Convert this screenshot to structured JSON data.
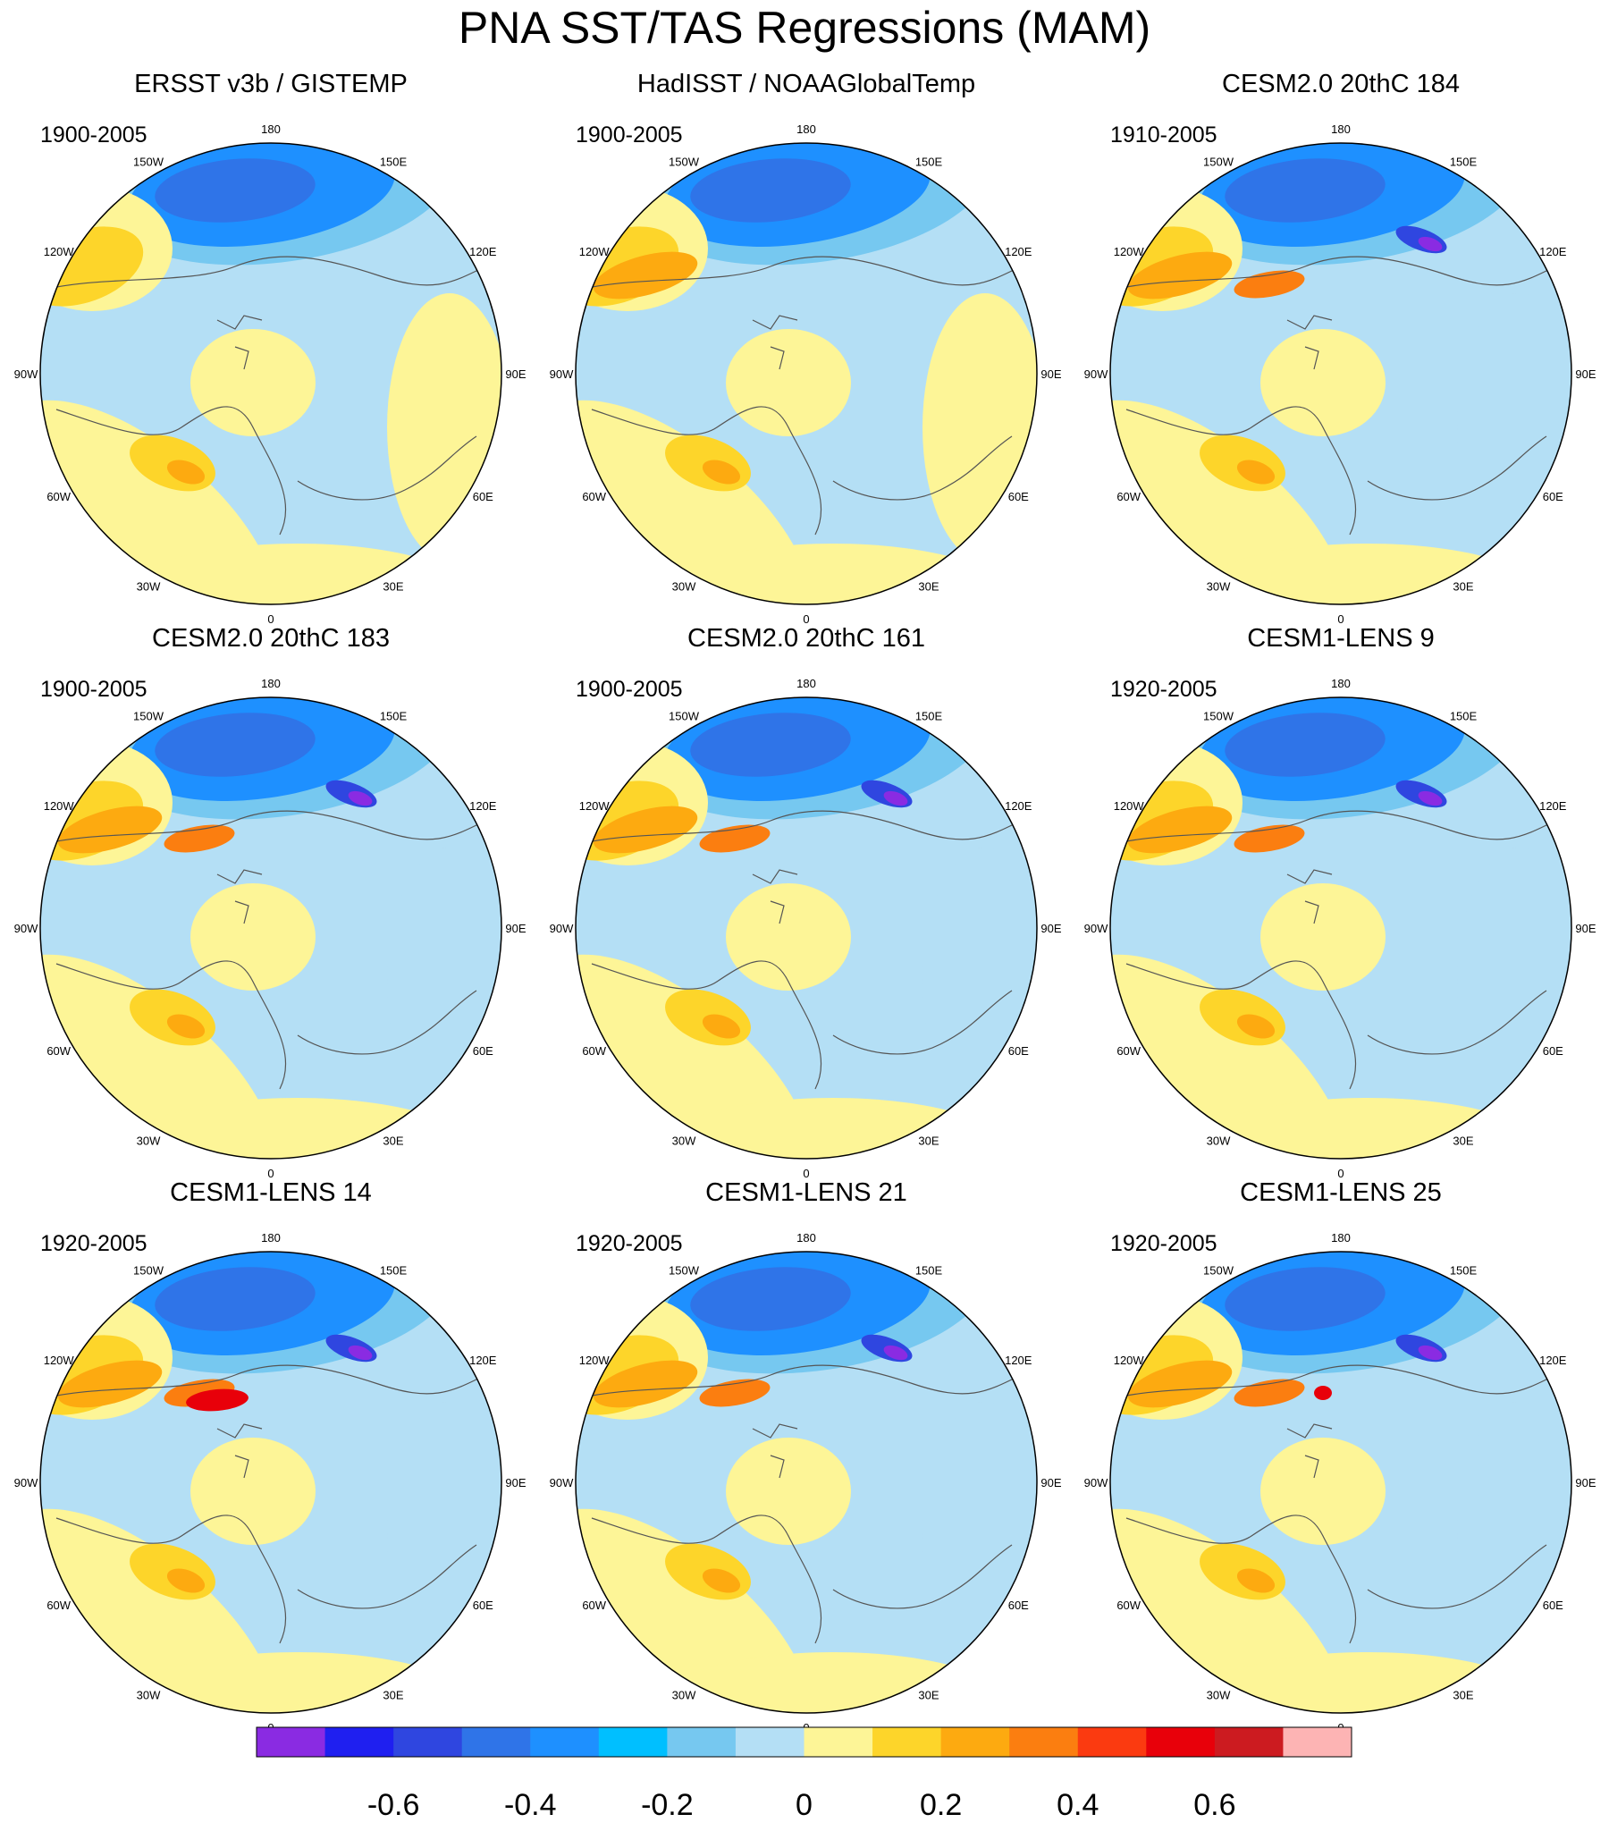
{
  "title": "PNA SST/TAS Regressions (MAM)",
  "panels": [
    {
      "name": "ERSST v3b / GISTEMP",
      "period": "1900-2005"
    },
    {
      "name": "HadISST / NOAAGlobalTemp",
      "period": "1900-2005"
    },
    {
      "name": "CESM2.0 20thC 184",
      "period": "1910-2005"
    },
    {
      "name": "CESM2.0 20thC 183",
      "period": "1900-2005"
    },
    {
      "name": "CESM2.0 20thC 161",
      "period": "1900-2005"
    },
    {
      "name": "CESM1-LENS 9",
      "period": "1920-2005"
    },
    {
      "name": "CESM1-LENS 14",
      "period": "1920-2005"
    },
    {
      "name": "CESM1-LENS 21",
      "period": "1920-2005"
    },
    {
      "name": "CESM1-LENS 25",
      "period": "1920-2005"
    }
  ],
  "longitude_labels": [
    "180",
    "150E",
    "120E",
    "90E",
    "60E",
    "30E",
    "0",
    "30W",
    "60W",
    "90W",
    "120W",
    "150W"
  ],
  "colorbar": {
    "colors": [
      "#8a2be2",
      "#1f1ff0",
      "#2f46e0",
      "#2f74e8",
      "#1e90ff",
      "#00bfff",
      "#76c8f0",
      "#b4dff5",
      "#fdf597",
      "#fdd52a",
      "#fdaa10",
      "#fb7e10",
      "#fb3a10",
      "#e8000a",
      "#cc1b20",
      "#fdb4b4"
    ],
    "tick_labels": [
      "-0.6",
      "-0.4",
      "-0.2",
      "0",
      "0.2",
      "0.4",
      "0.6"
    ]
  }
}
